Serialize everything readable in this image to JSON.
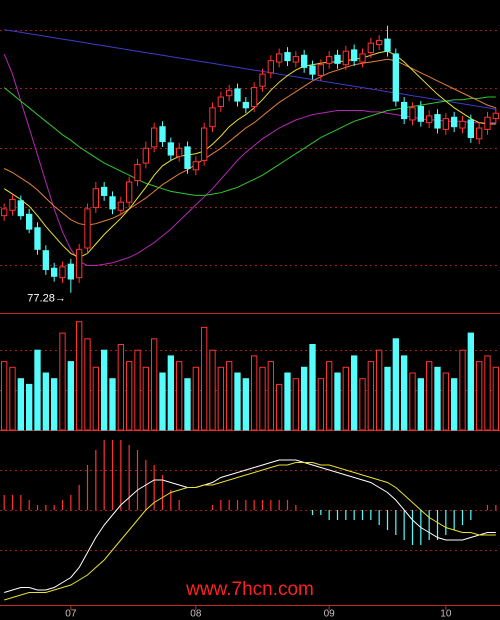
{
  "watermark": "www.7hcn.com",
  "chart_data": [
    {
      "type": "candlestick",
      "open": [
        83.0,
        83.4,
        84.1,
        83.1,
        82.1,
        80.4,
        79.1,
        78.4,
        79.4,
        78.4,
        80.6,
        83.6,
        85.1,
        84.4,
        83.4,
        84.0,
        85.6,
        86.9,
        88.1,
        89.6,
        88.4,
        87.4,
        88.1,
        86.4,
        87.1,
        89.6,
        91.1,
        91.9,
        92.4,
        91.4,
        91.1,
        92.6,
        93.6,
        94.4,
        95.1,
        94.4,
        94.9,
        94.1,
        93.4,
        94.3,
        94.9,
        94.2,
        95.3,
        94.4,
        95.1,
        95.7,
        96.1,
        95.0,
        91.4,
        90.1,
        91.1,
        89.9,
        90.5,
        89.4,
        90.3,
        89.5,
        90.1,
        88.7,
        89.4,
        90.2
      ],
      "high": [
        83.9,
        84.6,
        84.5,
        83.5,
        82.5,
        80.8,
        79.5,
        79.6,
        79.8,
        80.9,
        83.9,
        85.5,
        85.5,
        84.8,
        84.4,
        85.9,
        87.2,
        88.5,
        89.9,
        90.0,
        88.8,
        88.4,
        88.5,
        87.4,
        89.9,
        91.4,
        92.2,
        92.7,
        92.8,
        91.8,
        92.9,
        93.9,
        94.9,
        95.4,
        95.5,
        95.2,
        95.3,
        94.5,
        94.6,
        95.2,
        95.3,
        95.6,
        95.7,
        95.4,
        96.2,
        96.4,
        97.1,
        95.4,
        91.8,
        91.4,
        91.5,
        90.8,
        90.9,
        90.6,
        90.7,
        90.4,
        90.5,
        89.9,
        90.7,
        91.0
      ],
      "low": [
        82.6,
        83.0,
        82.7,
        81.7,
        80.1,
        78.6,
        78.1,
        78.0,
        77.28,
        78.0,
        80.2,
        83.2,
        84.1,
        83.1,
        83.0,
        83.6,
        85.2,
        86.5,
        87.7,
        88.1,
        87.1,
        87.0,
        86.1,
        86.0,
        86.7,
        89.2,
        90.7,
        91.5,
        91.1,
        90.6,
        90.7,
        92.2,
        93.2,
        94.0,
        94.1,
        94.0,
        93.6,
        93.1,
        93.0,
        93.9,
        93.9,
        93.8,
        94.1,
        94.0,
        94.7,
        95.3,
        94.8,
        91.1,
        89.8,
        89.7,
        89.6,
        89.5,
        89.1,
        89.0,
        89.2,
        89.1,
        88.4,
        88.3,
        89.0,
        89.8
      ],
      "close": [
        83.5,
        84.2,
        83.0,
        82.0,
        80.5,
        79.0,
        78.5,
        79.2,
        78.3,
        80.5,
        83.5,
        85.0,
        84.5,
        83.5,
        84.0,
        85.5,
        86.8,
        88.0,
        89.5,
        88.5,
        87.5,
        88.0,
        86.5,
        87.0,
        89.5,
        91.0,
        91.8,
        92.3,
        91.5,
        91.0,
        92.5,
        93.5,
        94.5,
        95.0,
        94.5,
        94.8,
        94.0,
        93.5,
        94.2,
        94.8,
        94.3,
        95.2,
        94.5,
        95.0,
        95.8,
        96.0,
        95.2,
        91.5,
        90.2,
        91.0,
        90.0,
        90.4,
        89.5,
        90.2,
        89.6,
        90.0,
        88.8,
        89.5,
        90.3,
        90.6
      ],
      "up_color": "#ff3232",
      "down_color": "#54fcfc",
      "ylim": [
        76,
        99
      ],
      "annotation": "77.28→",
      "lines": [
        {
          "color": "#3c3cc8",
          "values": [
            96.8,
            96.7,
            96.6,
            96.5,
            96.4,
            96.3,
            96.2,
            96.1,
            96.0,
            95.9,
            95.8,
            95.7,
            95.6,
            95.5,
            95.4,
            95.3,
            95.2,
            95.1,
            95.0,
            94.9,
            94.8,
            94.7,
            94.6,
            94.5,
            94.4,
            94.3,
            94.2,
            94.1,
            94.0,
            93.9,
            93.8,
            93.7,
            93.6,
            93.5,
            93.4,
            93.3,
            93.2,
            93.1,
            93.0,
            92.9,
            92.8,
            92.7,
            92.6,
            92.5,
            92.4,
            92.3,
            92.2,
            92.1,
            92.0,
            91.9,
            91.8,
            91.7,
            91.6,
            91.5,
            91.4,
            91.3,
            91.2,
            91.1,
            91.0,
            90.9
          ]
        },
        {
          "color": "#b428b4",
          "values": [
            95.0,
            93.5,
            91.5,
            89.5,
            87.5,
            85.5,
            83.5,
            81.8,
            80.5,
            79.6,
            79.3,
            79.3,
            79.4,
            79.5,
            79.7,
            79.9,
            80.2,
            80.6,
            81.0,
            81.5,
            82.0,
            82.6,
            83.2,
            83.8,
            84.4,
            85.0,
            85.7,
            86.4,
            87.1,
            87.7,
            88.2,
            88.7,
            89.1,
            89.5,
            89.8,
            90.1,
            90.3,
            90.5,
            90.6,
            90.7,
            90.8,
            90.8,
            90.8,
            90.8,
            90.7,
            90.7,
            90.6,
            90.5,
            90.4,
            90.3,
            90.2,
            90.1,
            90.1,
            90.0,
            90.0,
            90.0,
            89.9,
            89.9,
            89.9,
            89.9
          ]
        },
        {
          "color": "#32c832",
          "values": [
            92.5,
            92.0,
            91.5,
            91.0,
            90.5,
            90.0,
            89.5,
            89.0,
            88.6,
            88.1,
            87.7,
            87.3,
            86.9,
            86.6,
            86.3,
            86.0,
            85.7,
            85.4,
            85.2,
            85.0,
            84.8,
            84.7,
            84.6,
            84.5,
            84.5,
            84.6,
            84.7,
            84.9,
            85.1,
            85.4,
            85.7,
            86.0,
            86.4,
            86.8,
            87.2,
            87.6,
            88.0,
            88.4,
            88.8,
            89.1,
            89.4,
            89.7,
            90.0,
            90.2,
            90.4,
            90.6,
            90.8,
            90.9,
            91.0,
            91.1,
            91.2,
            91.3,
            91.4,
            91.5,
            91.6,
            91.6,
            91.7,
            91.7,
            91.8,
            91.8
          ]
        },
        {
          "color": "#e08040",
          "values": [
            86.5,
            86.2,
            85.8,
            85.4,
            84.9,
            84.3,
            83.7,
            83.2,
            82.7,
            82.4,
            82.3,
            82.4,
            82.6,
            82.8,
            83.1,
            83.5,
            83.9,
            84.3,
            84.8,
            85.3,
            85.7,
            86.1,
            86.4,
            86.8,
            87.2,
            87.6,
            88.0,
            88.5,
            89.0,
            89.5,
            89.9,
            90.4,
            90.9,
            91.4,
            91.8,
            92.2,
            92.6,
            93.0,
            93.3,
            93.6,
            93.8,
            94.0,
            94.2,
            94.3,
            94.4,
            94.5,
            94.6,
            94.5,
            94.2,
            93.9,
            93.6,
            93.3,
            93.0,
            92.7,
            92.4,
            92.1,
            91.8,
            91.5,
            91.2,
            91.0
          ]
        },
        {
          "color": "#e8e030",
          "values": [
            85.0,
            84.6,
            84.2,
            83.7,
            83.0,
            82.2,
            81.5,
            80.8,
            80.2,
            79.9,
            80.2,
            80.9,
            81.6,
            82.2,
            82.8,
            83.5,
            84.3,
            85.1,
            86.0,
            86.7,
            87.1,
            87.4,
            87.5,
            87.6,
            87.8,
            88.3,
            88.9,
            89.6,
            90.1,
            90.5,
            91.0,
            91.6,
            92.3,
            92.9,
            93.4,
            93.8,
            94.1,
            94.2,
            94.3,
            94.4,
            94.4,
            94.5,
            94.6,
            94.7,
            94.9,
            95.1,
            95.2,
            94.9,
            94.4,
            93.8,
            93.2,
            92.6,
            92.0,
            91.5,
            91.0,
            90.6,
            90.2,
            89.9,
            89.8,
            89.8
          ]
        }
      ]
    },
    {
      "type": "bar",
      "values": [
        60,
        55,
        45,
        40,
        70,
        50,
        45,
        85,
        60,
        95,
        80,
        55,
        70,
        45,
        75,
        60,
        70,
        55,
        80,
        50,
        65,
        60,
        45,
        55,
        90,
        70,
        55,
        60,
        50,
        45,
        65,
        55,
        60,
        40,
        50,
        45,
        55,
        75,
        45,
        60,
        50,
        55,
        65,
        45,
        60,
        70,
        55,
        80,
        65,
        50,
        45,
        60,
        55,
        50,
        45,
        70,
        85,
        60,
        65,
        55
      ],
      "ylim": [
        0,
        100
      ],
      "up_color": "#ff3232",
      "down_color": "#54fcfc"
    },
    {
      "type": "macd",
      "categories": [
        null,
        null,
        null,
        null,
        null,
        null,
        null,
        null,
        "07",
        null,
        null,
        null,
        null,
        null,
        null,
        null,
        null,
        null,
        null,
        null,
        null,
        null,
        null,
        "08",
        null,
        null,
        null,
        null,
        null,
        null,
        null,
        null,
        null,
        null,
        null,
        null,
        null,
        null,
        null,
        "09",
        null,
        null,
        null,
        null,
        null,
        null,
        null,
        null,
        null,
        null,
        null,
        null,
        null,
        "10",
        null,
        null,
        null,
        null,
        null,
        null
      ],
      "histogram": [
        0.6,
        0.6,
        0.6,
        0.4,
        0.2,
        0.2,
        0.2,
        0.4,
        0.6,
        1.0,
        1.8,
        2.4,
        2.8,
        2.8,
        2.8,
        2.6,
        2.4,
        2.0,
        1.8,
        1.4,
        0.8,
        0.4,
        0.0,
        0.0,
        0.0,
        0.2,
        0.4,
        0.4,
        0.4,
        0.4,
        0.4,
        0.4,
        0.4,
        0.4,
        0.4,
        0.2,
        0.0,
        -0.2,
        -0.2,
        -0.4,
        -0.4,
        -0.4,
        -0.4,
        -0.4,
        -0.4,
        -0.6,
        -0.8,
        -1.0,
        -1.2,
        -1.4,
        -1.4,
        -1.2,
        -1.2,
        -1.0,
        -0.8,
        -0.6,
        -0.4,
        0.0,
        0.2,
        0.2
      ],
      "up_color": "#ff3232",
      "down_color": "#54fcfc",
      "ylim": [
        -3.6,
        3.0
      ],
      "series": [
        {
          "color": "#ffffff",
          "values": [
            -3.3,
            -3.2,
            -3.1,
            -3.1,
            -3.2,
            -3.2,
            -3.1,
            -2.9,
            -2.7,
            -2.3,
            -1.7,
            -1.1,
            -0.6,
            -0.2,
            0.2,
            0.5,
            0.8,
            1.0,
            1.2,
            1.2,
            1.1,
            1.0,
            0.9,
            0.9,
            1.0,
            1.1,
            1.3,
            1.4,
            1.5,
            1.6,
            1.7,
            1.8,
            1.9,
            2.0,
            2.0,
            2.0,
            1.9,
            1.8,
            1.7,
            1.6,
            1.5,
            1.4,
            1.3,
            1.2,
            1.1,
            0.9,
            0.7,
            0.4,
            0.0,
            -0.4,
            -0.7,
            -0.9,
            -1.1,
            -1.2,
            -1.2,
            -1.2,
            -1.1,
            -1.0,
            -0.9,
            -0.9
          ]
        },
        {
          "color": "#e8e030",
          "values": [
            -3.6,
            -3.5,
            -3.4,
            -3.3,
            -3.3,
            -3.3,
            -3.2,
            -3.1,
            -3.0,
            -2.8,
            -2.6,
            -2.3,
            -2.0,
            -1.6,
            -1.2,
            -0.8,
            -0.4,
            0.0,
            0.3,
            0.5,
            0.7,
            0.8,
            0.9,
            0.9,
            1.0,
            1.0,
            1.1,
            1.2,
            1.3,
            1.4,
            1.5,
            1.6,
            1.7,
            1.8,
            1.8,
            1.9,
            1.9,
            1.9,
            1.8,
            1.8,
            1.7,
            1.6,
            1.5,
            1.4,
            1.3,
            1.2,
            1.1,
            0.9,
            0.6,
            0.3,
            0.0,
            -0.3,
            -0.5,
            -0.7,
            -0.8,
            -0.9,
            -0.9,
            -1.0,
            -1.0,
            -1.0
          ]
        }
      ]
    }
  ]
}
